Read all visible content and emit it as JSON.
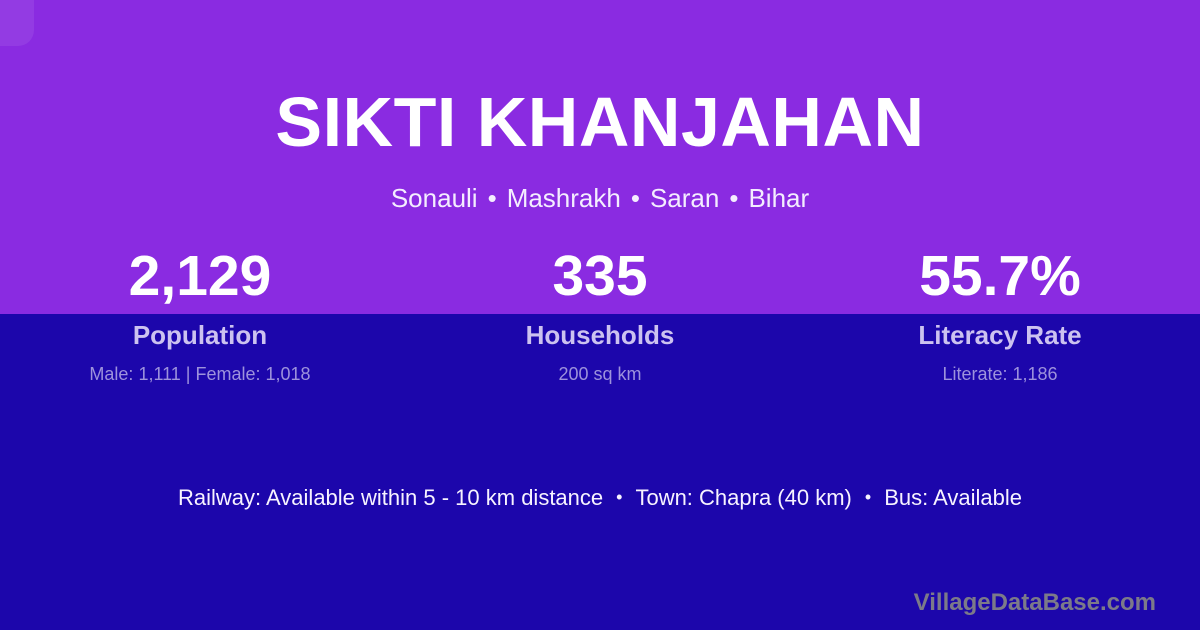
{
  "colors": {
    "top_bg": "#8A2BE1",
    "bottom_bg": "#1C06AB",
    "title_text": "#FFFFFF",
    "stat_label_text": "#CCC2F0",
    "stat_sub_text": "#9D92DC",
    "watermark_text": "#7C7A89"
  },
  "header": {
    "title": "SIKTI KHANJAHAN"
  },
  "breadcrumb": {
    "separator": "•",
    "items": [
      "Sonauli",
      "Mashrakh",
      "Saran",
      "Bihar"
    ]
  },
  "stats": [
    {
      "value": "2,129",
      "label": "Population",
      "sub": "Male: 1,111 | Female: 1,018"
    },
    {
      "value": "335",
      "label": "Households",
      "sub": "200 sq km"
    },
    {
      "value": "55.7%",
      "label": "Literacy Rate",
      "sub": "Literate: 1,186"
    }
  ],
  "facilities": {
    "separator": "•",
    "items": [
      "Railway: Available within 5 - 10 km distance",
      "Town: Chapra (40 km)",
      "Bus: Available"
    ]
  },
  "footer": {
    "watermark": "VillageDataBase.com"
  }
}
